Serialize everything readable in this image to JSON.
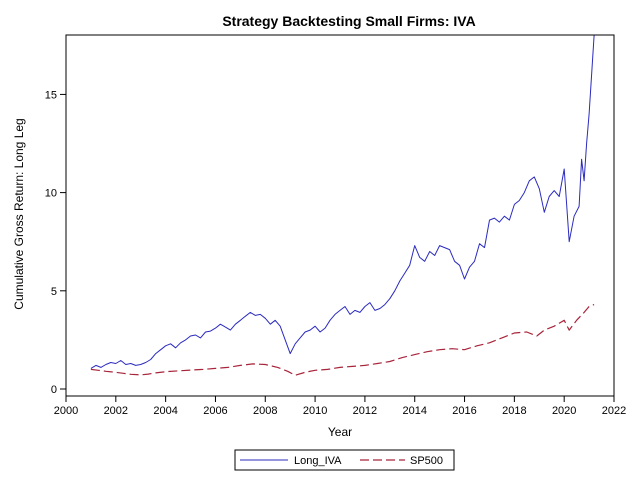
{
  "chart_data": {
    "type": "line",
    "title": "Strategy Backtesting Small Firms: IVA",
    "xlabel": "Year",
    "ylabel": "Cumulative Gross Return: Long Leg",
    "xlim": [
      2000,
      2022
    ],
    "ylim": [
      0,
      18
    ],
    "xticks": [
      2000,
      2002,
      2004,
      2006,
      2008,
      2010,
      2012,
      2014,
      2016,
      2018,
      2020,
      2022
    ],
    "yticks": [
      0,
      5,
      10,
      15
    ],
    "grid": false,
    "legend_position": "bottom",
    "series": [
      {
        "name": "Long_IVA",
        "color": "#2b2bbf",
        "dash": "solid",
        "x": [
          2001.0,
          2001.2,
          2001.4,
          2001.6,
          2001.8,
          2002.0,
          2002.2,
          2002.4,
          2002.6,
          2002.8,
          2003.0,
          2003.2,
          2003.4,
          2003.6,
          2003.8,
          2004.0,
          2004.2,
          2004.4,
          2004.6,
          2004.8,
          2005.0,
          2005.2,
          2005.4,
          2005.6,
          2005.8,
          2006.0,
          2006.2,
          2006.4,
          2006.6,
          2006.8,
          2007.0,
          2007.2,
          2007.4,
          2007.6,
          2007.8,
          2008.0,
          2008.2,
          2008.4,
          2008.6,
          2008.8,
          2009.0,
          2009.2,
          2009.4,
          2009.6,
          2009.8,
          2010.0,
          2010.2,
          2010.4,
          2010.6,
          2010.8,
          2011.0,
          2011.2,
          2011.4,
          2011.6,
          2011.8,
          2012.0,
          2012.2,
          2012.4,
          2012.6,
          2012.8,
          2013.0,
          2013.2,
          2013.4,
          2013.6,
          2013.8,
          2014.0,
          2014.2,
          2014.4,
          2014.6,
          2014.8,
          2015.0,
          2015.2,
          2015.4,
          2015.6,
          2015.8,
          2016.0,
          2016.2,
          2016.4,
          2016.6,
          2016.8,
          2017.0,
          2017.2,
          2017.4,
          2017.6,
          2017.8,
          2018.0,
          2018.2,
          2018.4,
          2018.6,
          2018.8,
          2019.0,
          2019.2,
          2019.4,
          2019.6,
          2019.8,
          2020.0,
          2020.2,
          2020.4,
          2020.6,
          2020.7,
          2020.8,
          2020.9,
          2021.0,
          2021.1,
          2021.2
        ],
        "values": [
          1.05,
          1.2,
          1.1,
          1.25,
          1.35,
          1.3,
          1.45,
          1.25,
          1.3,
          1.2,
          1.25,
          1.35,
          1.5,
          1.8,
          2.0,
          2.2,
          2.3,
          2.1,
          2.35,
          2.5,
          2.7,
          2.75,
          2.6,
          2.9,
          2.95,
          3.1,
          3.3,
          3.15,
          3.0,
          3.3,
          3.5,
          3.7,
          3.9,
          3.75,
          3.8,
          3.6,
          3.3,
          3.5,
          3.2,
          2.5,
          1.8,
          2.3,
          2.6,
          2.9,
          3.0,
          3.2,
          2.9,
          3.1,
          3.5,
          3.8,
          4.0,
          4.2,
          3.8,
          4.0,
          3.9,
          4.2,
          4.4,
          4.0,
          4.1,
          4.3,
          4.6,
          5.0,
          5.5,
          5.9,
          6.3,
          7.3,
          6.7,
          6.5,
          7.0,
          6.8,
          7.3,
          7.2,
          7.1,
          6.5,
          6.3,
          5.6,
          6.2,
          6.5,
          7.4,
          7.2,
          8.6,
          8.7,
          8.5,
          8.8,
          8.6,
          9.4,
          9.6,
          10.0,
          10.6,
          10.8,
          10.2,
          9.0,
          9.8,
          10.1,
          9.8,
          11.2,
          7.5,
          8.8,
          9.3,
          11.7,
          10.6,
          12.5,
          14.0,
          16.0,
          18.0
        ]
      },
      {
        "name": "SP500",
        "color": "#a8243a",
        "dash": "dashed",
        "x": [
          2001.0,
          2001.3,
          2001.6,
          2002.0,
          2002.3,
          2002.6,
          2003.0,
          2003.3,
          2003.6,
          2004.0,
          2004.5,
          2005.0,
          2005.5,
          2006.0,
          2006.5,
          2007.0,
          2007.5,
          2008.0,
          2008.5,
          2008.9,
          2009.2,
          2009.6,
          2010.0,
          2010.5,
          2011.0,
          2011.5,
          2012.0,
          2012.5,
          2013.0,
          2013.5,
          2014.0,
          2014.5,
          2015.0,
          2015.5,
          2016.0,
          2016.5,
          2017.0,
          2017.5,
          2018.0,
          2018.5,
          2018.9,
          2019.2,
          2019.6,
          2020.0,
          2020.2,
          2020.5,
          2020.8,
          2021.0,
          2021.2
        ],
        "values": [
          1.0,
          0.95,
          0.9,
          0.85,
          0.8,
          0.75,
          0.72,
          0.76,
          0.82,
          0.88,
          0.92,
          0.96,
          1.0,
          1.05,
          1.1,
          1.2,
          1.28,
          1.25,
          1.1,
          0.9,
          0.7,
          0.85,
          0.95,
          1.0,
          1.1,
          1.15,
          1.2,
          1.3,
          1.4,
          1.6,
          1.75,
          1.9,
          2.0,
          2.05,
          2.0,
          2.2,
          2.35,
          2.6,
          2.85,
          2.9,
          2.7,
          3.0,
          3.2,
          3.5,
          3.0,
          3.5,
          3.9,
          4.2,
          4.3
        ]
      }
    ]
  }
}
